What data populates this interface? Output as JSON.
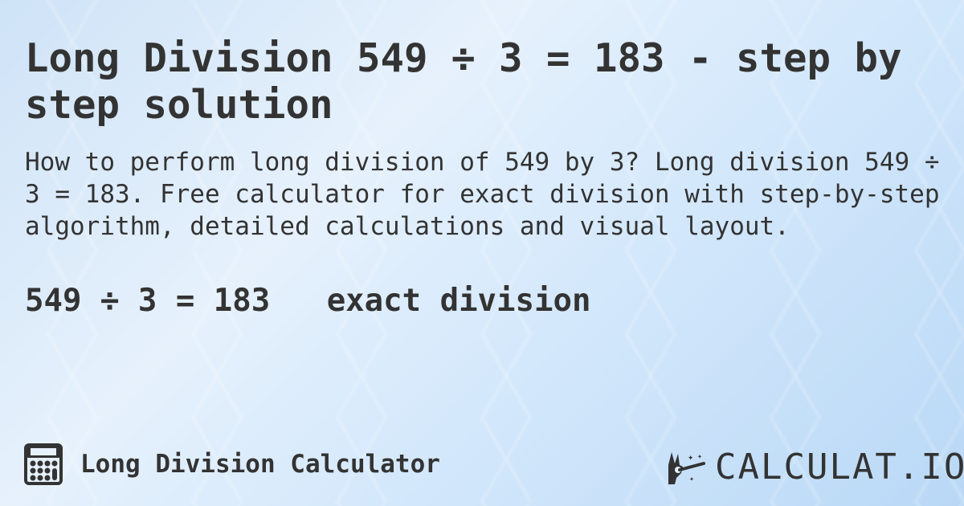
{
  "title": "Long Division 549 ÷ 3 = 183 - step by step solution",
  "description": "How to perform long division of 549 by 3? Long division 549 ÷ 3 = 183. Free calculator for exact division with step-by-step algorithm, detailed calculations and visual layout.",
  "result": {
    "equation": "549 ÷ 3 = 183",
    "type": "exact division"
  },
  "footer": {
    "calculator_name": "Long Division Calculator",
    "calculator_icon": "calculator-icon",
    "logo_text": "CALCULAT.IO",
    "logo_icon": "magic-wand-hand-icon"
  }
}
